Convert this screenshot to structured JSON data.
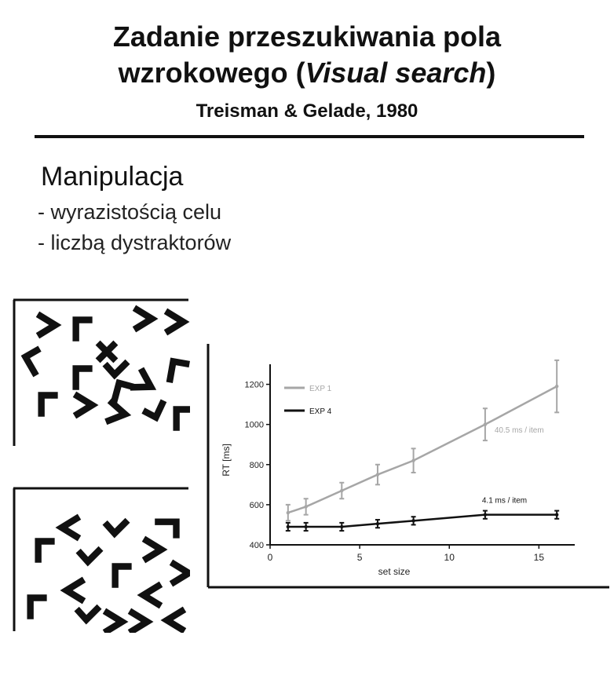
{
  "title": {
    "line1": "Zadanie przeszukiwania pola",
    "line2_prefix": "wzrokowego (",
    "line2_italic": "Visual search",
    "line2_suffix": ")"
  },
  "subtitle": "Treisman & Gelade, 1980",
  "section": {
    "heading": "Manipulacja",
    "bullets": [
      "- wyrazistością celu",
      "- liczbą dystraktorów"
    ]
  },
  "stimulus_glyphs": {
    "top_panel": [
      "arrow-right",
      "corner",
      "arrow-right",
      "arrow-right",
      "cross",
      "corner",
      "check",
      "corner",
      "corner",
      "arrow-right",
      "corner",
      "arrow-right",
      "arrow-right",
      "check",
      "corner",
      "corner"
    ],
    "bottom_panel": [
      "arrow-left",
      "check",
      "corner",
      "corner",
      "arrow-right",
      "check",
      "arrow-right",
      "corner",
      "arrow-left",
      "corner",
      "arrow-left",
      "check",
      "arrow-right",
      "arrow-right",
      "arrow-left"
    ]
  },
  "chart_data": {
    "type": "line",
    "title": "",
    "xlabel": "set size",
    "ylabel": "RT [ms]",
    "xlim": [
      0,
      17
    ],
    "ylim": [
      400,
      1300
    ],
    "xticks": [
      0,
      5,
      10,
      15
    ],
    "yticks": [
      400,
      600,
      800,
      1000,
      1200
    ],
    "legend_position": "top-left",
    "series": [
      {
        "name": "EXP 1",
        "color": "#a6a6a6",
        "x": [
          1,
          2,
          4,
          6,
          8,
          12,
          16
        ],
        "y": [
          560,
          590,
          670,
          750,
          820,
          1000,
          1190
        ],
        "err": [
          40,
          40,
          40,
          50,
          60,
          80,
          130
        ],
        "annotation": "40.5 ms / item"
      },
      {
        "name": "EXP 4",
        "color": "#111111",
        "x": [
          1,
          2,
          4,
          6,
          8,
          12,
          16
        ],
        "y": [
          490,
          490,
          490,
          505,
          520,
          550,
          550
        ],
        "err": [
          20,
          20,
          20,
          20,
          20,
          20,
          20
        ],
        "annotation": "4.1 ms / item"
      }
    ]
  }
}
